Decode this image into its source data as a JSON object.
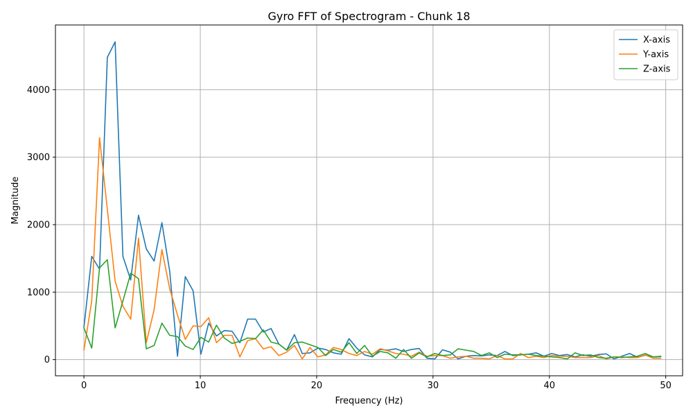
{
  "chart_data": {
    "type": "line",
    "title": "Gyro FFT of Spectrogram - Chunk 18",
    "xlabel": "Frequency (Hz)",
    "ylabel": "Magnitude",
    "xlim": [
      -2.45,
      51.45
    ],
    "ylim": [
      -240,
      4960
    ],
    "xticks": [
      0,
      10,
      20,
      30,
      40,
      50
    ],
    "yticks": [
      0,
      1000,
      2000,
      3000,
      4000
    ],
    "grid": true,
    "legend": "top-right",
    "colors": {
      "X-axis": "#1f77b4",
      "Y-axis": "#ff7f0e",
      "Z-axis": "#2ca02c"
    },
    "x": [
      0,
      0.67,
      1.34,
      2.01,
      2.68,
      3.35,
      4.02,
      4.69,
      5.36,
      6.03,
      6.7,
      7.37,
      8.04,
      8.71,
      9.38,
      10.05,
      10.72,
      11.39,
      12.06,
      12.73,
      13.4,
      14.07,
      14.74,
      15.41,
      16.08,
      16.75,
      17.42,
      18.09,
      18.76,
      19.43,
      20.1,
      20.77,
      21.44,
      22.11,
      22.78,
      23.45,
      24.12,
      24.79,
      25.46,
      26.13,
      26.8,
      27.47,
      28.14,
      28.81,
      29.48,
      30.15,
      30.82,
      31.49,
      32.16,
      32.83,
      33.5,
      34.17,
      34.84,
      35.51,
      36.18,
      36.85,
      37.52,
      38.19,
      38.86,
      39.53,
      40.2,
      40.87,
      41.54,
      42.21,
      42.88,
      43.55,
      44.22,
      44.89,
      45.56,
      46.23,
      46.9,
      47.57,
      48.24,
      48.91,
      49.58
    ],
    "series": [
      {
        "name": "X-axis",
        "values": [
          480,
          1530,
          1340,
          4480,
          4710,
          1530,
          1180,
          2140,
          1640,
          1460,
          2030,
          1310,
          50,
          1230,
          1020,
          80,
          540,
          350,
          430,
          420,
          250,
          600,
          600,
          410,
          460,
          230,
          140,
          370,
          90,
          100,
          170,
          150,
          100,
          80,
          310,
          170,
          70,
          40,
          150,
          140,
          160,
          120,
          150,
          165,
          20,
          10,
          145,
          110,
          10,
          50,
          60,
          55,
          70,
          60,
          120,
          60,
          70,
          80,
          100,
          50,
          90,
          60,
          75,
          40,
          70,
          50,
          75,
          85,
          10,
          50,
          90,
          35,
          65,
          40,
          45
        ]
      },
      {
        "name": "Y-axis",
        "values": [
          140,
          870,
          3290,
          2230,
          1160,
          790,
          600,
          1800,
          250,
          740,
          1630,
          1050,
          660,
          300,
          500,
          490,
          620,
          250,
          360,
          360,
          40,
          280,
          310,
          160,
          190,
          60,
          110,
          210,
          10,
          180,
          40,
          70,
          180,
          150,
          90,
          60,
          120,
          80,
          160,
          130,
          90,
          80,
          50,
          110,
          50,
          60,
          60,
          20,
          40,
          50,
          20,
          20,
          10,
          60,
          10,
          10,
          90,
          30,
          50,
          30,
          60,
          50,
          50,
          30,
          30,
          30,
          60,
          10,
          40,
          40,
          30,
          30,
          70,
          20,
          20
        ]
      },
      {
        "name": "Z-axis",
        "values": [
          470,
          170,
          1360,
          1480,
          470,
          870,
          1280,
          1200,
          160,
          210,
          540,
          360,
          340,
          200,
          150,
          330,
          260,
          510,
          320,
          240,
          270,
          320,
          310,
          440,
          260,
          230,
          140,
          250,
          260,
          220,
          180,
          60,
          150,
          110,
          250,
          90,
          210,
          50,
          120,
          100,
          20,
          150,
          20,
          100,
          40,
          90,
          60,
          70,
          160,
          140,
          120,
          60,
          100,
          30,
          80,
          70,
          70,
          80,
          60,
          50,
          40,
          30,
          10,
          100,
          60,
          70,
          30,
          20,
          40,
          30,
          40,
          50,
          90,
          40,
          50
        ]
      }
    ]
  }
}
